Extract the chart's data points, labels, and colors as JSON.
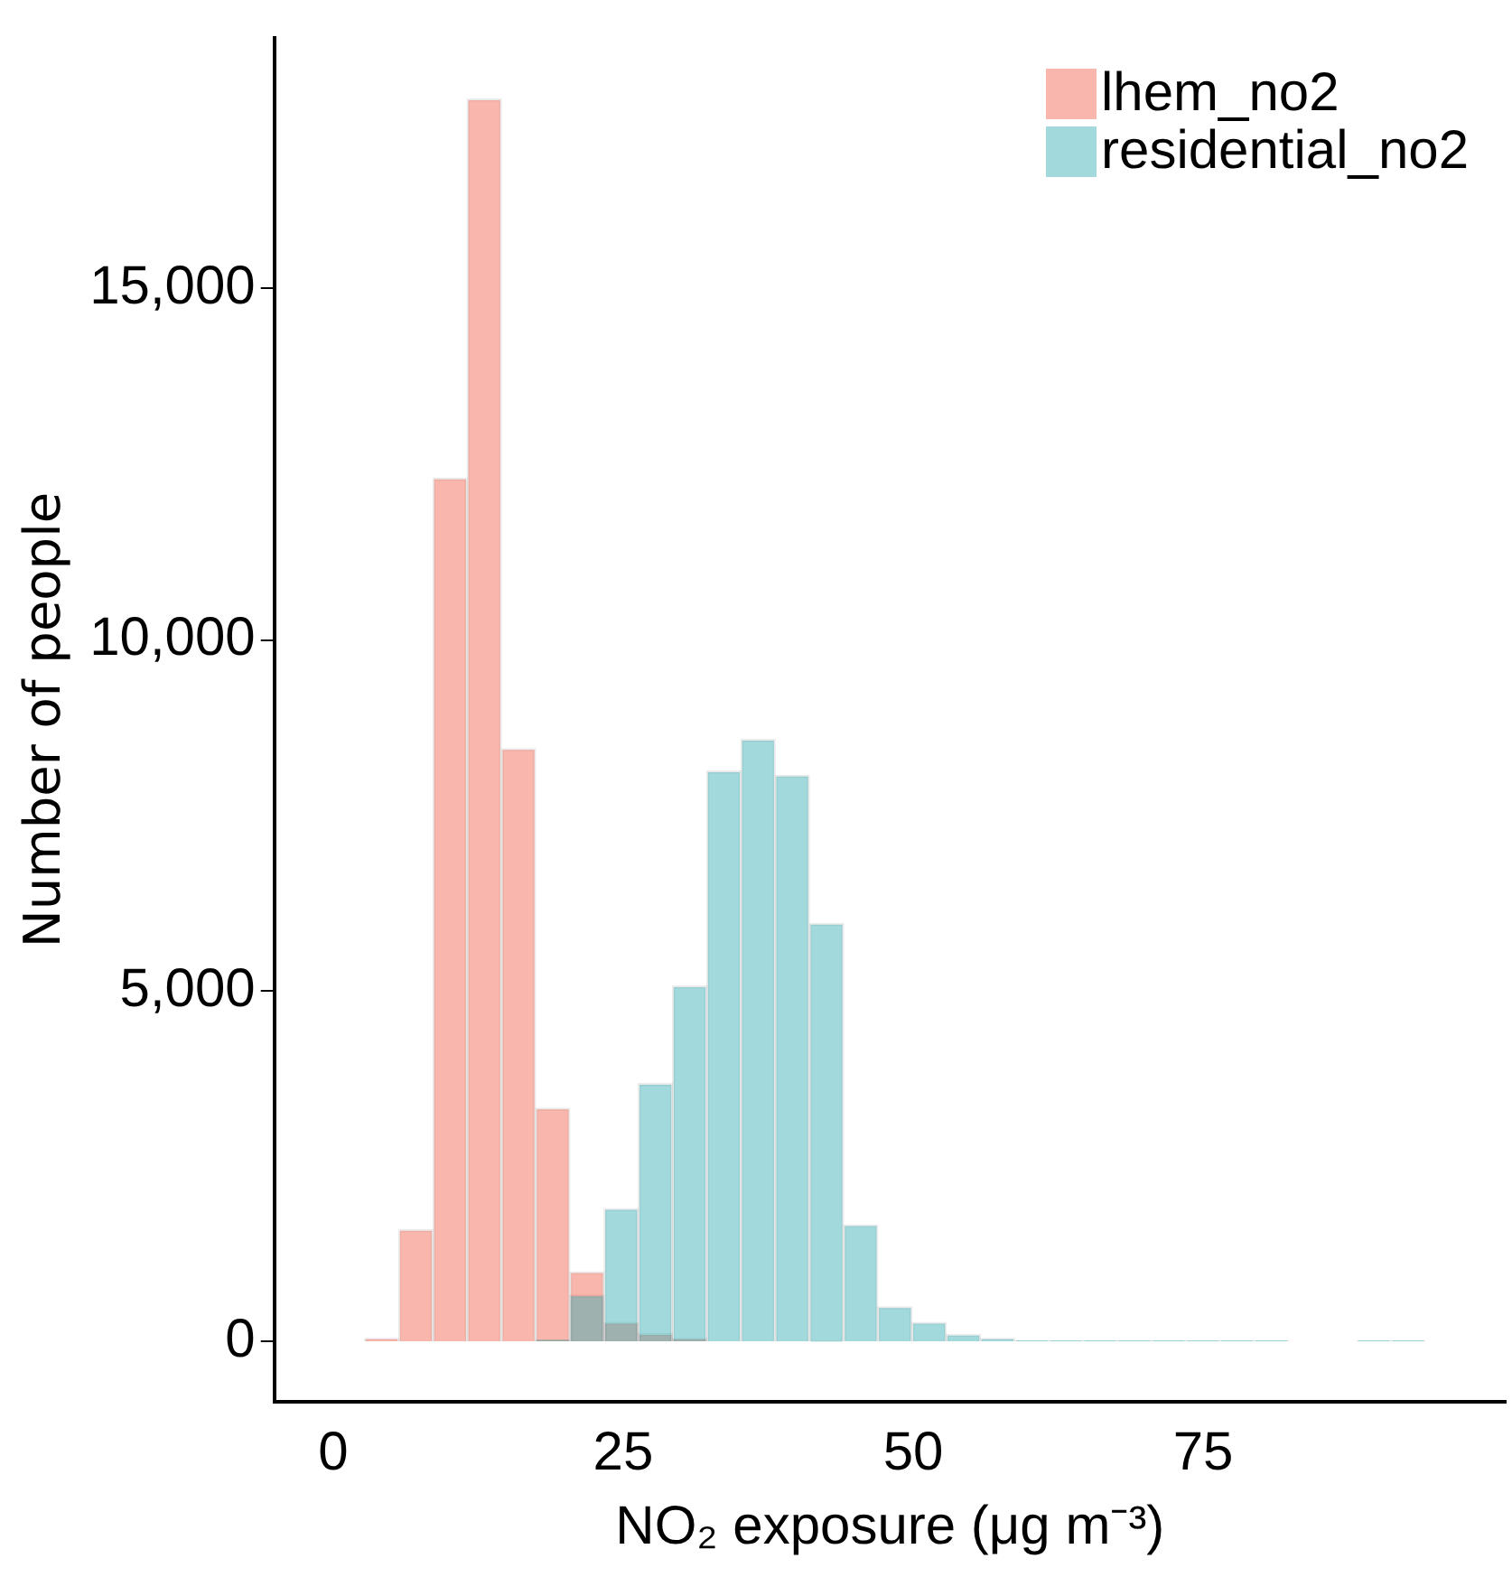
{
  "chart_data": {
    "type": "histogram",
    "xlabel": "NO₂ exposure (μg m⁻³)",
    "ylabel": "Number of people",
    "bins": [
      -0.25,
      2.7,
      5.65,
      8.6,
      11.55,
      14.5,
      17.45,
      20.4,
      23.35,
      26.3,
      29.25,
      32.2,
      35.15,
      38.1,
      41.05,
      44,
      46.95,
      49.9,
      52.85,
      55.8,
      58.75,
      61.7,
      64.65,
      67.6,
      70.55,
      73.5,
      76.45,
      79.4,
      82.35,
      85.3,
      88.25,
      91.2,
      94.15,
      97.1
    ],
    "series": [
      {
        "name": "lhem_no2",
        "color": "#f9b6ac",
        "values": [
          0,
          50,
          1600,
          12300,
          17700,
          8450,
          3330,
          1000,
          280,
          120,
          50,
          0,
          0,
          0,
          0,
          0,
          0,
          0,
          0,
          0,
          0,
          0,
          0,
          0,
          0,
          0,
          0,
          0,
          0,
          0,
          0,
          0,
          0
        ]
      },
      {
        "name": "residential_no2",
        "color": "#a1d9dc",
        "values": [
          0,
          0,
          0,
          0,
          0,
          0,
          30,
          670,
          1900,
          3680,
          5070,
          8130,
          8580,
          8070,
          5960,
          1670,
          500,
          280,
          110,
          50,
          20,
          20,
          20,
          20,
          20,
          20,
          20,
          20,
          0,
          0,
          20,
          20,
          0
        ]
      }
    ],
    "xlim": [
      -5,
      101
    ],
    "xticks": [
      0,
      25,
      50,
      75
    ],
    "ylim": [
      -850,
      18570
    ],
    "yticks": [
      {
        "value": 0,
        "label": "0"
      },
      {
        "value": 5000,
        "label": "5,000"
      },
      {
        "value": 10000,
        "label": "10,000"
      },
      {
        "value": 15000,
        "label": "15,000"
      }
    ],
    "grid": false,
    "legend": "top right"
  }
}
